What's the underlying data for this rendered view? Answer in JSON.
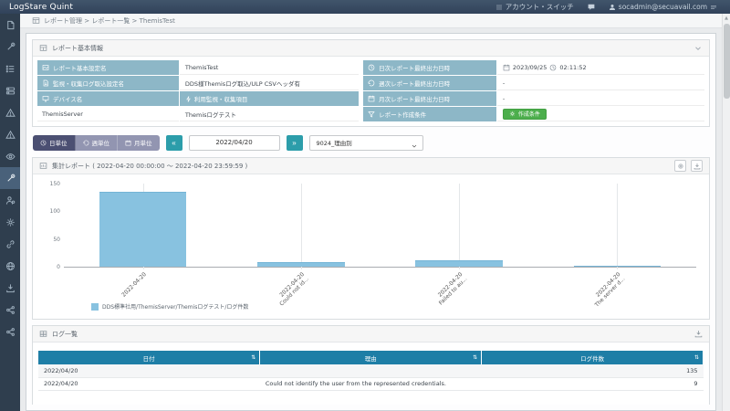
{
  "app": {
    "title": "LogStare Quint"
  },
  "topbar": {
    "account_switch_label": "アカウント・スイッチ",
    "user_email": "socadmin@secuavail.com"
  },
  "breadcrumb": {
    "text": "レポート管理 > レポート一覧 > ThemisTest"
  },
  "sidebar": {
    "active_index": 7,
    "icons": [
      "file",
      "wrench",
      "list",
      "server",
      "warning",
      "warning-2",
      "eye",
      "wrench-2",
      "user-gear",
      "gear",
      "link",
      "globe",
      "download",
      "share",
      "share-2"
    ]
  },
  "report_info": {
    "title": "レポート基本情報",
    "rows_left": [
      {
        "label": "レポート基本設定名",
        "value": "ThemisTest"
      },
      {
        "label": "監視・収集ログ取込設定名",
        "value": "DDS様Themisログ取込/ULP CSVヘッダ有"
      }
    ],
    "device_header": {
      "label": "デバイス名",
      "value": "利用監視・収集項目"
    },
    "device_row": {
      "name": "ThemisServer",
      "item": "Themisログテスト"
    },
    "rows_right": [
      {
        "label": "日次レポート最終出力日時",
        "date": "2023/09/25",
        "time": "02:11:52"
      },
      {
        "label": "週次レポート最終出力日時",
        "value": "-"
      },
      {
        "label": "月次レポート最終出力日時",
        "value": "-"
      },
      {
        "label": "レポート作成条件",
        "button_label": "作成条件"
      }
    ]
  },
  "filters": {
    "day_label": "日単位",
    "week_label": "週単位",
    "month_label": "月単位",
    "prev_icon": "«",
    "next_icon": "»",
    "date_value": "2022/04/20",
    "report_select_value": "9024_理由別"
  },
  "chart_panel": {
    "title": "集計レポート ( 2022-04-20 00:00:00 ～ 2022-04-20 23:59:59 )"
  },
  "chart_data": {
    "type": "bar",
    "categories": [
      {
        "line1": "2022-04-20",
        "line2": ""
      },
      {
        "line1": "2022-04-20",
        "line2": "Could not id..."
      },
      {
        "line1": "2022-04-20",
        "line2": "Failed to au..."
      },
      {
        "line1": "2022-04-20",
        "line2": "The server d..."
      }
    ],
    "values": [
      135,
      9,
      12,
      1
    ],
    "ylim": [
      0,
      150
    ],
    "yticks": [
      0,
      50,
      100,
      150
    ],
    "legend": "DDS標準社用/ThemisServer/Themisログテスト/ログ件数",
    "bar_color": "#88c2e0",
    "bar_border_color": "#74b4d6",
    "grid": true,
    "legend_position": "bottom-left"
  },
  "log_panel": {
    "title": "ログ一覧",
    "sort_icon": "⇅",
    "columns": [
      "日付",
      "理由",
      "ログ件数"
    ],
    "rows": [
      {
        "date": "2022/04/20",
        "reason": "",
        "count": "135"
      },
      {
        "date": "2022/04/20",
        "reason": "Could not identify the user from the represented credentials.",
        "count": "9"
      }
    ]
  }
}
